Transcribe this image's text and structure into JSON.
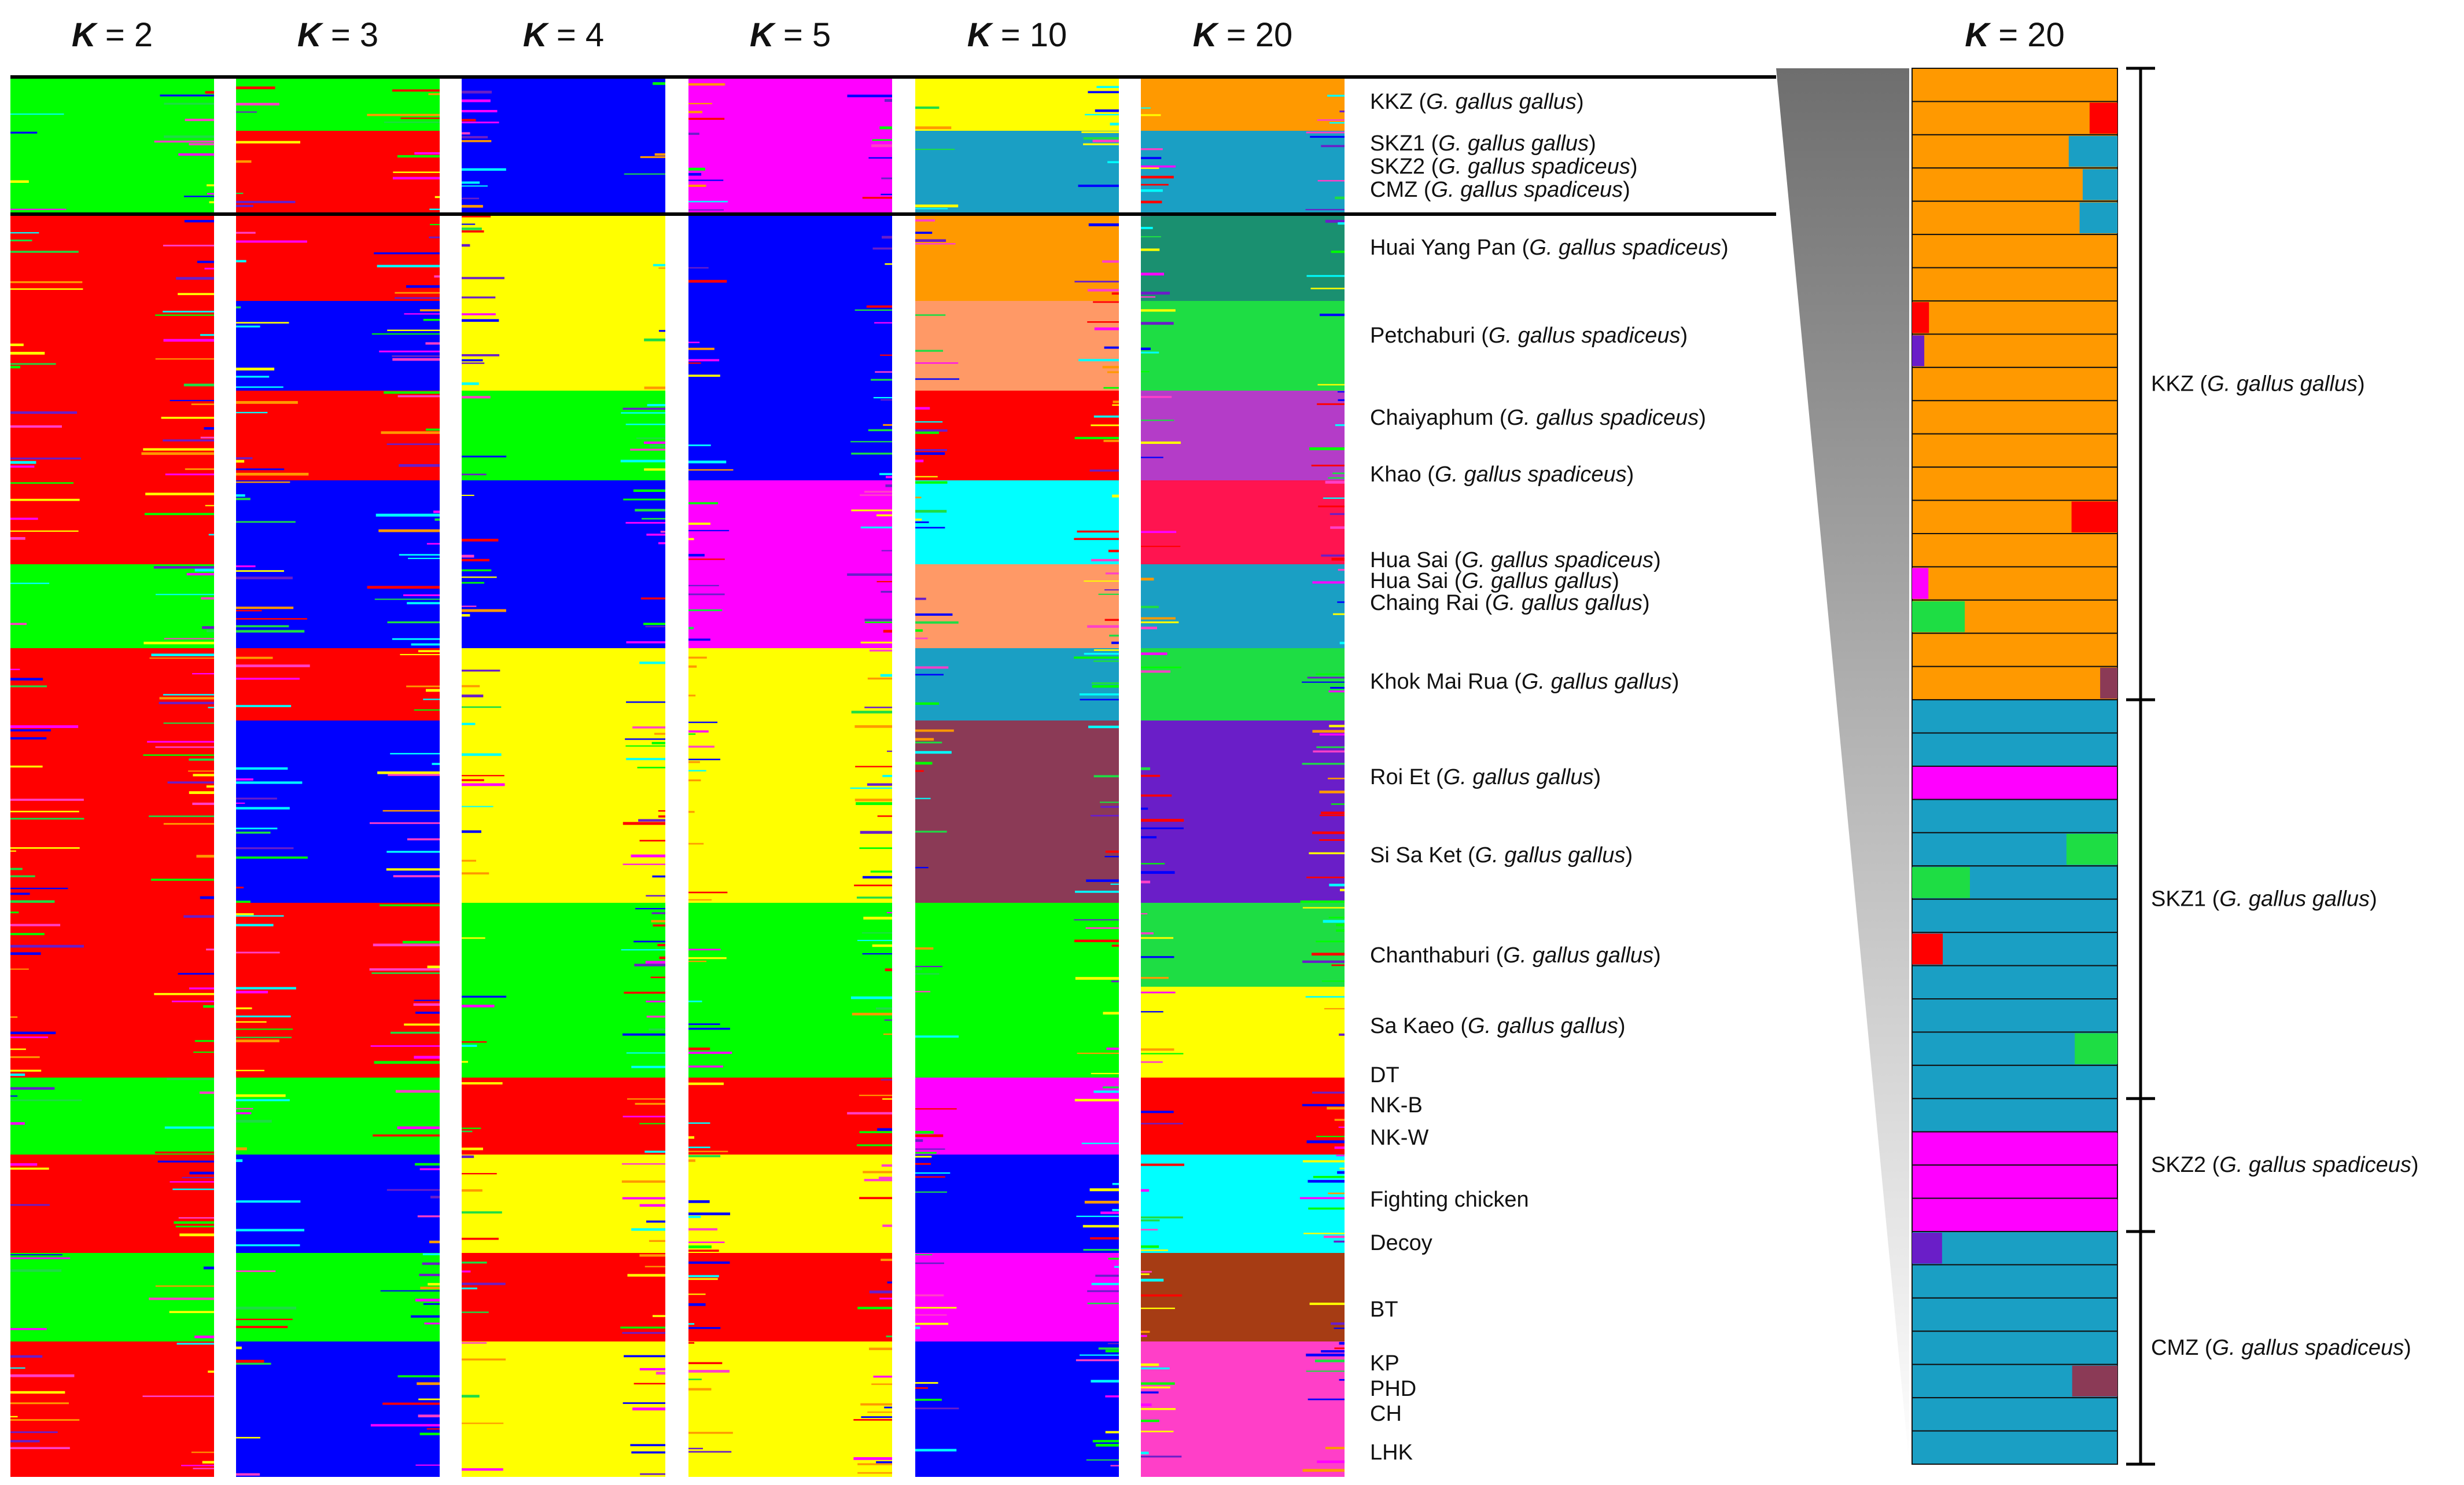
{
  "chart_data": {
    "type": "structure-admixture-barplot",
    "title": "",
    "panel_headers": [
      {
        "k_symbol": "K",
        "eq": " = ",
        "value": "2"
      },
      {
        "k_symbol": "K",
        "eq": " = ",
        "value": "3"
      },
      {
        "k_symbol": "K",
        "eq": " = ",
        "value": "4"
      },
      {
        "k_symbol": "K",
        "eq": " = ",
        "value": "5"
      },
      {
        "k_symbol": "K",
        "eq": " = ",
        "value": "10"
      },
      {
        "k_symbol": "K",
        "eq": " = ",
        "value": "20"
      }
    ],
    "zoom_header": {
      "k_symbol": "K",
      "eq": " = ",
      "value": "20"
    },
    "populations": [
      {
        "name": "KKZ",
        "subspecies": "G. gallus gallus"
      },
      {
        "name": "SKZ1",
        "subspecies": "G. gallus gallus"
      },
      {
        "name": "SKZ2",
        "subspecies": "G. gallus spadiceus"
      },
      {
        "name": "CMZ",
        "subspecies": "G. gallus spadiceus"
      },
      {
        "name": "Huai Yang Pan",
        "subspecies": "G. gallus spadiceus"
      },
      {
        "name": "Petchaburi",
        "subspecies": "G. gallus spadiceus"
      },
      {
        "name": "Chaiyaphum",
        "subspecies": "G. gallus spadiceus"
      },
      {
        "name": "Khao",
        "subspecies": "G. gallus spadiceus"
      },
      {
        "name": "Hua Sai",
        "subspecies": "G. gallus spadiceus"
      },
      {
        "name": "Hua Sai",
        "subspecies": "G. gallus gallus"
      },
      {
        "name": "Chaing Rai",
        "subspecies": "G. gallus gallus"
      },
      {
        "name": "Khok Mai Rua",
        "subspecies": "G. gallus gallus"
      },
      {
        "name": "Roi Et",
        "subspecies": "G. gallus gallus"
      },
      {
        "name": "Si Sa Ket",
        "subspecies": "G. gallus gallus"
      },
      {
        "name": "Chanthaburi",
        "subspecies": "G. gallus gallus"
      },
      {
        "name": "Sa Kaeo",
        "subspecies": "G. gallus gallus"
      },
      {
        "name": "DT",
        "subspecies": ""
      },
      {
        "name": "NK-B",
        "subspecies": ""
      },
      {
        "name": "NK-W",
        "subspecies": ""
      },
      {
        "name": "Fighting chicken",
        "subspecies": ""
      },
      {
        "name": "Decoy",
        "subspecies": ""
      },
      {
        "name": "BT",
        "subspecies": ""
      },
      {
        "name": "KP",
        "subspecies": ""
      },
      {
        "name": "PHD",
        "subspecies": ""
      },
      {
        "name": "CH",
        "subspecies": ""
      },
      {
        "name": "LHK",
        "subspecies": ""
      }
    ],
    "zoom_groups": [
      {
        "name": "KKZ",
        "subspecies": "G. gallus gallus",
        "individuals": 19
      },
      {
        "name": "SKZ1",
        "subspecies": "G. gallus gallus",
        "individuals": 12
      },
      {
        "name": "SKZ2",
        "subspecies": "G. gallus spadiceus",
        "individuals": 4
      },
      {
        "name": "CMZ",
        "subspecies": "G. gallus spadiceus",
        "individuals": 7
      }
    ],
    "cluster_colors": {
      "red": "#ff0000",
      "green": "#00ff00",
      "blue": "#0000ff",
      "yellow": "#ffff00",
      "magenta": "#ff00ff",
      "orange": "#ff9900",
      "teal_blue": "#1a9fc4",
      "maroon": "#8b3a56",
      "cyan": "#00ffff",
      "salmon": "#ff9966",
      "purple": "#6a1ec8",
      "brown": "#a63c14",
      "pink": "#ff3fc8",
      "lime_green": "#1edd44",
      "violet": "#b43cc8",
      "dark_green": "#0d6e3a",
      "sea_green": "#1a9070",
      "crimson": "#ff1450"
    }
  }
}
